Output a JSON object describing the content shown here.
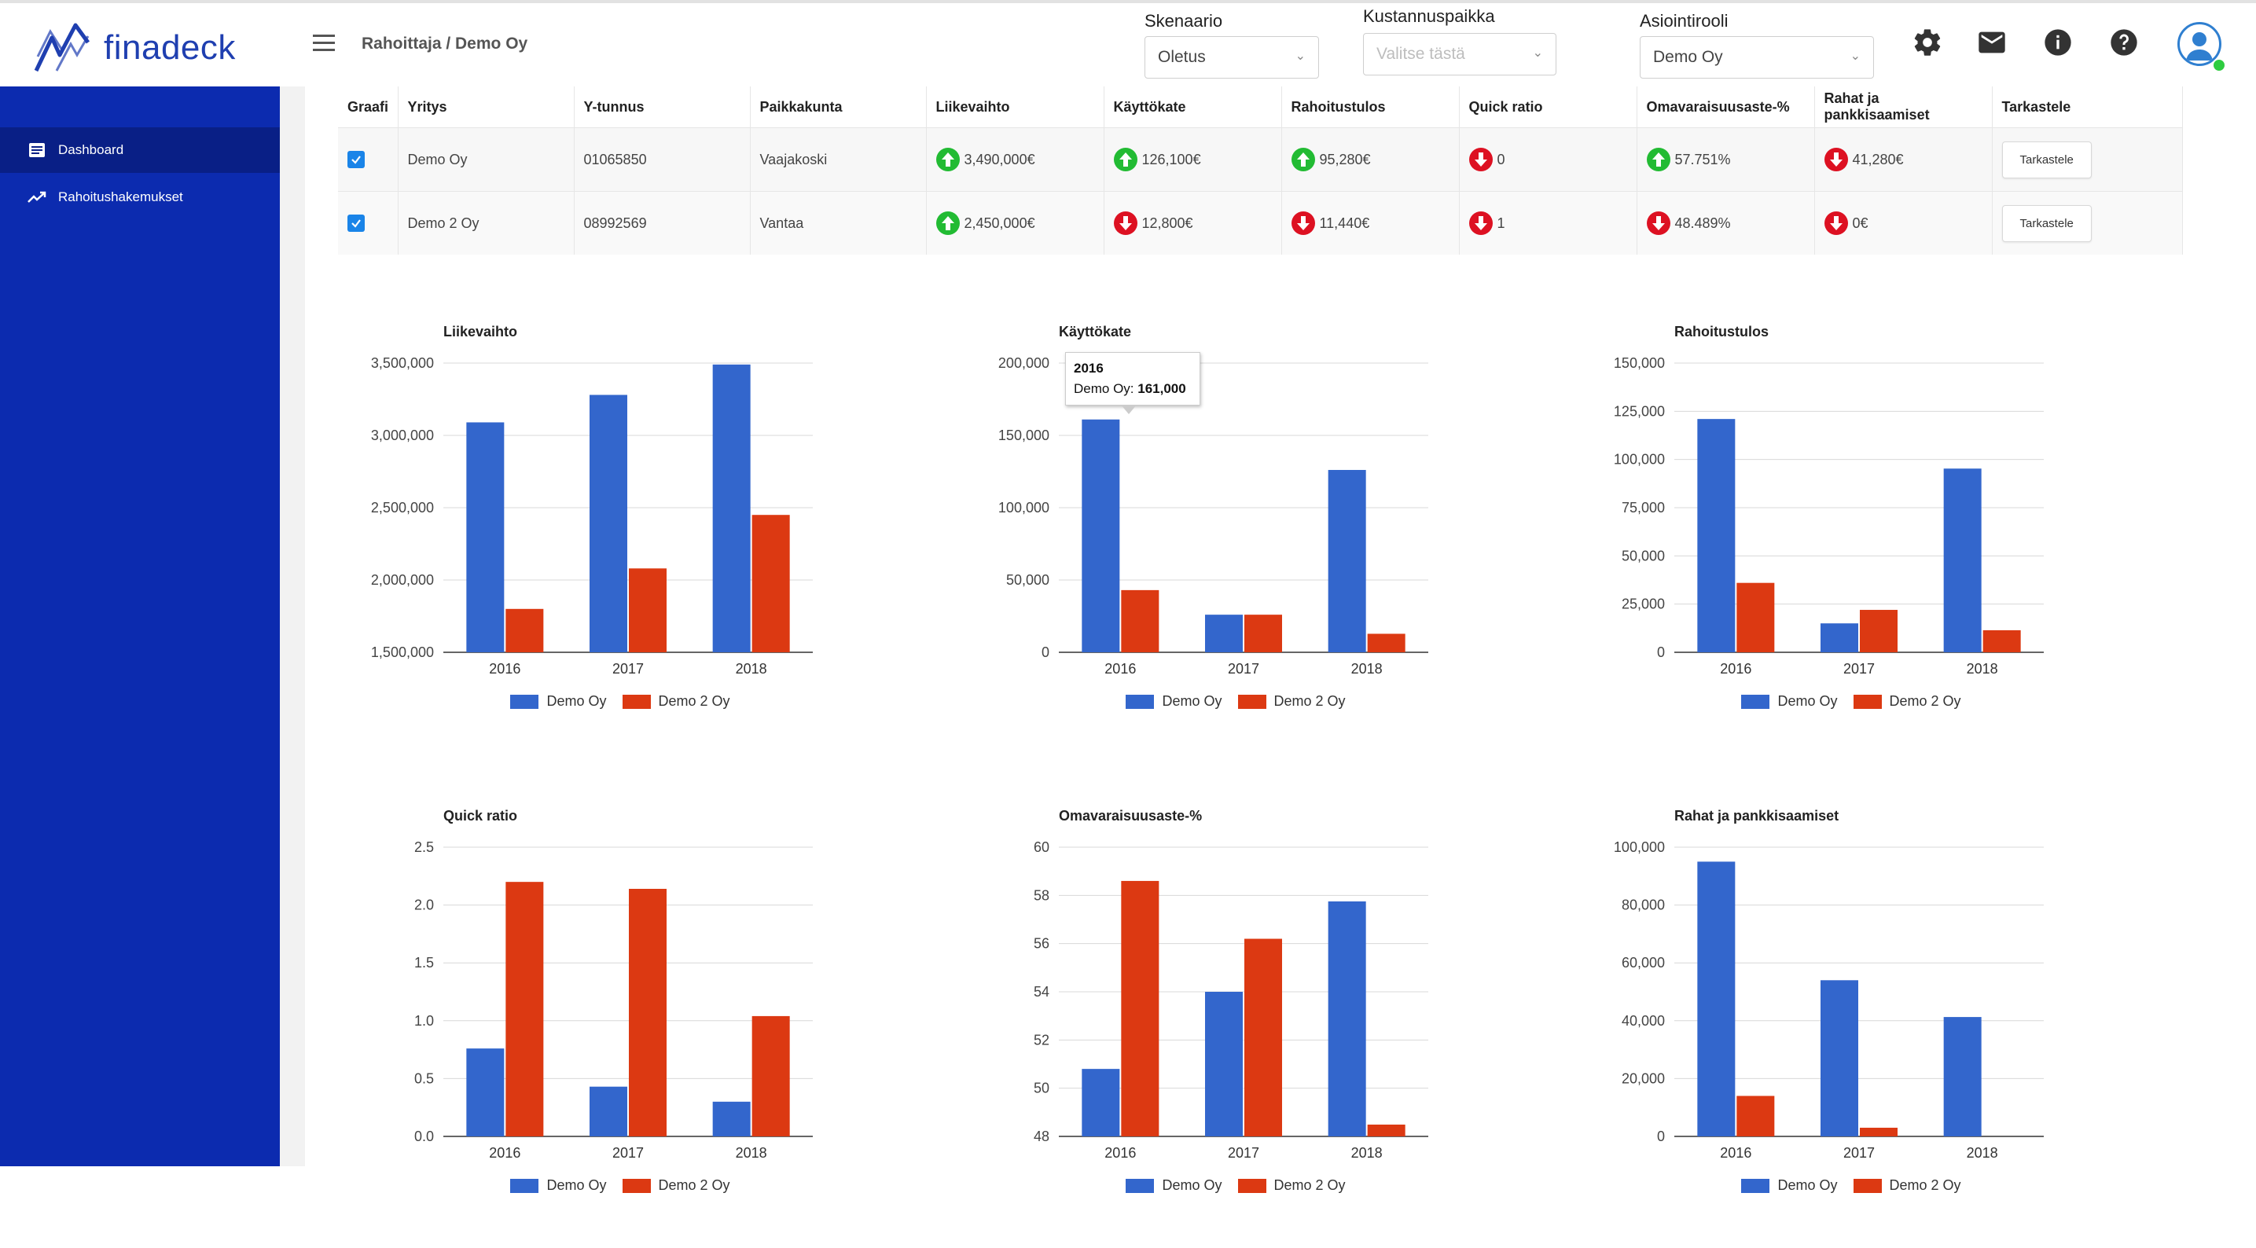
{
  "app": {
    "logo_text": "finadeck"
  },
  "header": {
    "breadcrumb": "Rahoittaja / Demo Oy",
    "selects": [
      {
        "label": "Skenaario",
        "value": "Oletus",
        "placeholder": ""
      },
      {
        "label": "Kustannuspaikka",
        "value": "",
        "placeholder": "Valitse tästä"
      },
      {
        "label": "Asiointirooli",
        "value": "Demo Oy",
        "placeholder": ""
      }
    ],
    "icons": [
      "gear-icon",
      "mail-icon",
      "info-icon",
      "help-icon",
      "user-avatar-icon"
    ]
  },
  "sidebar": {
    "items": [
      {
        "label": "Dashboard",
        "icon": "dashboard-icon",
        "active": true
      },
      {
        "label": "Rahoitushakemukset",
        "icon": "trending-up-icon",
        "active": false
      }
    ]
  },
  "table": {
    "headers": [
      "Graafi",
      "Yritys",
      "Y-tunnus",
      "Paikkakunta",
      "Liikevaihto",
      "Käyttökate",
      "Rahoitustulos",
      "Quick ratio",
      "Omavaraisuusaste-%",
      "Rahat ja pankkisaamiset",
      "Tarkastele"
    ],
    "rows": [
      {
        "checked": true,
        "yritys": "Demo Oy",
        "ytunnus": "01065850",
        "paikkakunta": "Vaajakoski",
        "metrics": [
          {
            "value": "3,490,000€",
            "trend": "up"
          },
          {
            "value": "126,100€",
            "trend": "up"
          },
          {
            "value": "95,280€",
            "trend": "up"
          },
          {
            "value": "0",
            "trend": "down"
          },
          {
            "value": "57.751%",
            "trend": "up"
          },
          {
            "value": "41,280€",
            "trend": "down"
          }
        ],
        "button": "Tarkastele"
      },
      {
        "checked": true,
        "yritys": "Demo 2 Oy",
        "ytunnus": "08992569",
        "paikkakunta": "Vantaa",
        "metrics": [
          {
            "value": "2,450,000€",
            "trend": "up"
          },
          {
            "value": "12,800€",
            "trend": "down"
          },
          {
            "value": "11,440€",
            "trend": "down"
          },
          {
            "value": "1",
            "trend": "down"
          },
          {
            "value": "48.489%",
            "trend": "down"
          },
          {
            "value": "0€",
            "trend": "down"
          }
        ],
        "button": "Tarkastele"
      }
    ]
  },
  "colors": {
    "series1": "#3366cc",
    "series2": "#dc3912",
    "sidebar": "#0c2baf",
    "up": "#22bb33",
    "down": "#dd1122"
  },
  "tooltip": {
    "year": "2016",
    "label": "Demo Oy: ",
    "value": "161,000"
  },
  "chart_data": [
    {
      "type": "bar",
      "title": "Liikevaihto",
      "categories": [
        "2016",
        "2017",
        "2018"
      ],
      "series": [
        {
          "name": "Demo Oy",
          "values": [
            3090000,
            3280000,
            3490000
          ]
        },
        {
          "name": "Demo 2 Oy",
          "values": [
            1800000,
            2080000,
            2450000
          ]
        }
      ],
      "ylim": [
        1500000,
        3500000
      ],
      "ticks": [
        1500000,
        2000000,
        2500000,
        3000000,
        3500000
      ],
      "tick_labels": [
        "1,500,000",
        "2,000,000",
        "2,500,000",
        "3,000,000",
        "3,500,000"
      ],
      "legend": "bottom"
    },
    {
      "type": "bar",
      "title": "Käyttökate",
      "categories": [
        "2016",
        "2017",
        "2018"
      ],
      "series": [
        {
          "name": "Demo Oy",
          "values": [
            161000,
            26000,
            126100
          ]
        },
        {
          "name": "Demo 2 Oy",
          "values": [
            43000,
            26000,
            12800
          ]
        }
      ],
      "ylim": [
        0,
        200000
      ],
      "ticks": [
        0,
        50000,
        100000,
        150000,
        200000
      ],
      "tick_labels": [
        "0",
        "50,000",
        "100,000",
        "150,000",
        "200,000"
      ],
      "legend": "bottom"
    },
    {
      "type": "bar",
      "title": "Rahoitustulos",
      "categories": [
        "2016",
        "2017",
        "2018"
      ],
      "series": [
        {
          "name": "Demo Oy",
          "values": [
            121000,
            15000,
            95280
          ]
        },
        {
          "name": "Demo 2 Oy",
          "values": [
            36000,
            22000,
            11440
          ]
        }
      ],
      "ylim": [
        0,
        150000
      ],
      "ticks": [
        0,
        25000,
        50000,
        75000,
        100000,
        125000,
        150000
      ],
      "tick_labels": [
        "0",
        "25,000",
        "50,000",
        "75,000",
        "100,000",
        "125,000",
        "150,000"
      ],
      "legend": "bottom"
    },
    {
      "type": "bar",
      "title": "Quick ratio",
      "categories": [
        "2016",
        "2017",
        "2018"
      ],
      "series": [
        {
          "name": "Demo Oy",
          "values": [
            0.76,
            0.43,
            0.3
          ]
        },
        {
          "name": "Demo 2 Oy",
          "values": [
            2.2,
            2.14,
            1.04
          ]
        }
      ],
      "ylim": [
        0,
        2.5
      ],
      "ticks": [
        0,
        0.5,
        1,
        1.5,
        2,
        2.5
      ],
      "tick_labels": [
        "0.0",
        "0.5",
        "1.0",
        "1.5",
        "2.0",
        "2.5"
      ],
      "legend": "bottom"
    },
    {
      "type": "bar",
      "title": "Omavaraisuusaste-%",
      "categories": [
        "2016",
        "2017",
        "2018"
      ],
      "series": [
        {
          "name": "Demo Oy",
          "values": [
            50.8,
            54.0,
            57.75
          ]
        },
        {
          "name": "Demo 2 Oy",
          "values": [
            58.6,
            56.2,
            48.49
          ]
        }
      ],
      "ylim": [
        48,
        60
      ],
      "ticks": [
        48,
        50,
        52,
        54,
        56,
        58,
        60
      ],
      "tick_labels": [
        "48",
        "50",
        "52",
        "54",
        "56",
        "58",
        "60"
      ],
      "legend": "bottom"
    },
    {
      "type": "bar",
      "title": "Rahat ja pankkisaamiset",
      "categories": [
        "2016",
        "2017",
        "2018"
      ],
      "series": [
        {
          "name": "Demo Oy",
          "values": [
            95000,
            54000,
            41280
          ]
        },
        {
          "name": "Demo 2 Oy",
          "values": [
            14000,
            3000,
            0
          ]
        }
      ],
      "ylim": [
        0,
        100000
      ],
      "ticks": [
        0,
        20000,
        40000,
        60000,
        80000,
        100000
      ],
      "tick_labels": [
        "0",
        "20,000",
        "40,000",
        "60,000",
        "80,000",
        "100,000"
      ],
      "legend": "bottom"
    }
  ]
}
